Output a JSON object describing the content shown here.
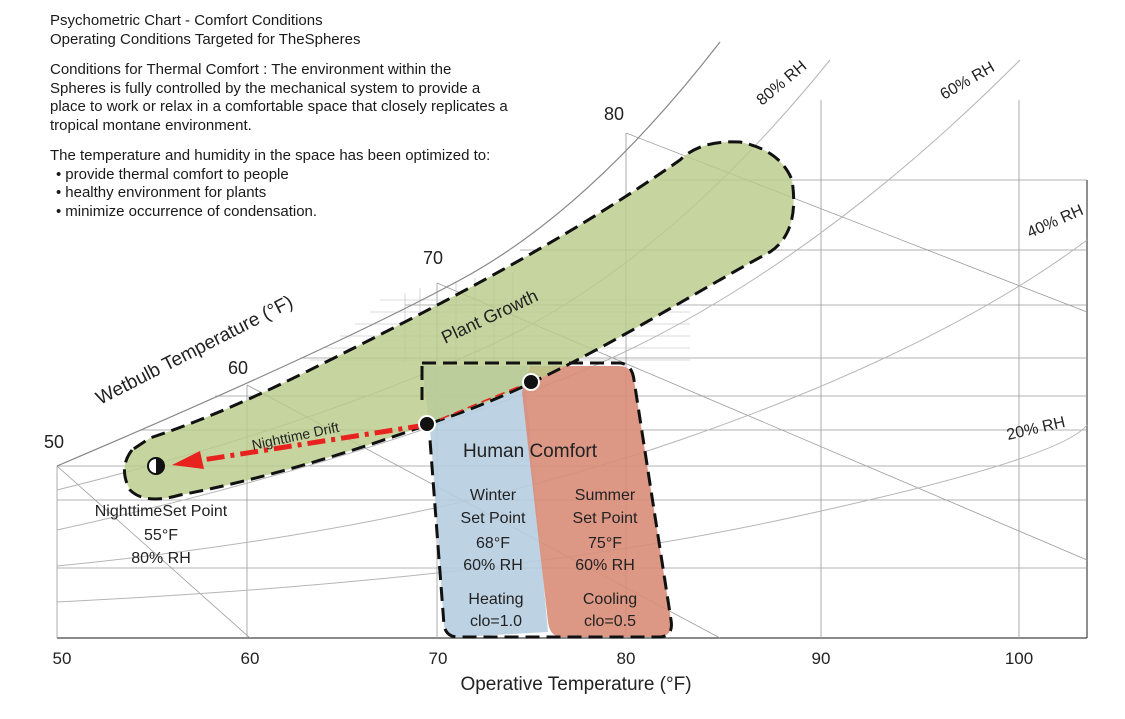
{
  "header": {
    "title": "Psychometric Chart  -  Comfort Conditions",
    "subtitle": "Operating Conditions Targeted for TheSpheres"
  },
  "intro": {
    "paragraph": "Conditions for Thermal Comfort : The environment within the Spheres is fully controlled by the mechanical system to provide a place to work or relax in a comfortable space that closely replicates a tropical montane environment.",
    "optimized_intro": "The temperature and humidity in the space has been optimized to:",
    "bullets": [
      "provide thermal comfort to people",
      "healthy environment for plants",
      "minimize occurrence of condensation."
    ]
  },
  "axes": {
    "x_label": "Operative Temperature (°F)",
    "x_ticks": [
      "50",
      "60",
      "70",
      "80",
      "90",
      "100"
    ],
    "wetbulb_label": "Wetbulb Temperature (°F)",
    "wetbulb_ticks": [
      "50",
      "60",
      "70",
      "80"
    ]
  },
  "rh_curves": [
    {
      "label": "80% RH",
      "rh": 80
    },
    {
      "label": "60% RH",
      "rh": 60
    },
    {
      "label": "40% RH",
      "rh": 40
    },
    {
      "label": "20% RH",
      "rh": 20
    }
  ],
  "zones": {
    "plant_growth": {
      "label": "Plant Growth",
      "color": "#b9cc8a"
    },
    "human_comfort": {
      "label": "Human Comfort"
    },
    "winter": {
      "line1": "Winter",
      "line2": "Set Point",
      "temp": "68°F",
      "rh": "60% RH",
      "mode": "Heating",
      "clo": "clo=1.0",
      "color": "#b6cde0"
    },
    "summer": {
      "line1": "Summer",
      "line2": "Set Point",
      "temp": "75°F",
      "rh": "60% RH",
      "mode": "Cooling",
      "clo": "clo=0.5",
      "color": "#d98c78"
    },
    "nighttime": {
      "title": "NighttimeSet Point",
      "temp": "55°F",
      "rh": "80% RH"
    },
    "drift": {
      "label": "Nighttime Drift",
      "color": "#e8231f"
    }
  },
  "set_points": [
    {
      "name": "nighttime",
      "temp_f": 55,
      "rh_pct": 80
    },
    {
      "name": "winter",
      "temp_f": 68,
      "rh_pct": 60
    },
    {
      "name": "summer",
      "temp_f": 75,
      "rh_pct": 60
    }
  ]
}
